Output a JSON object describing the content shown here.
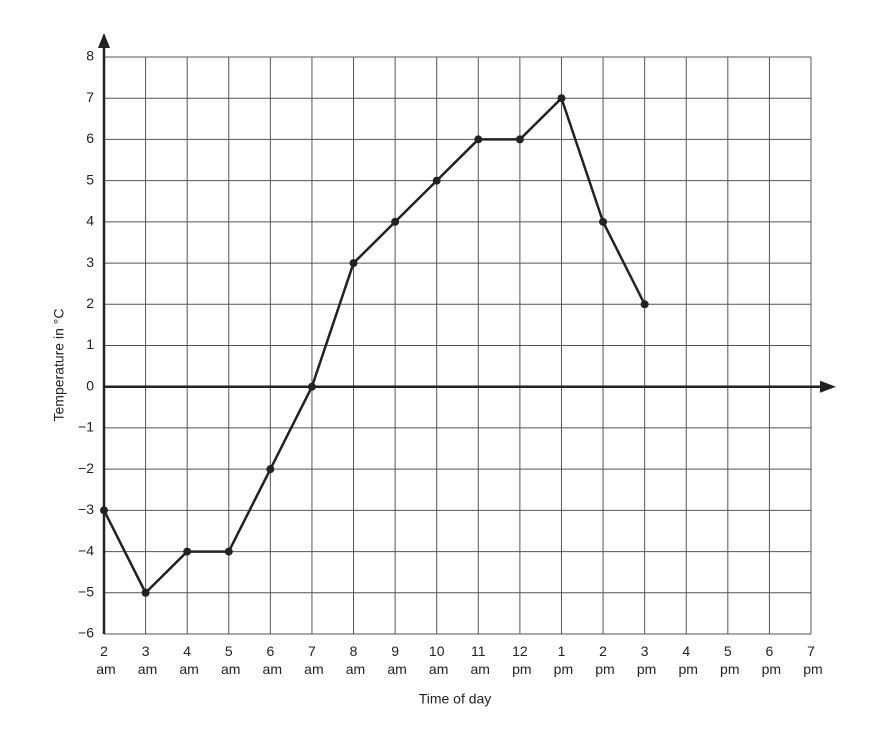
{
  "chart_data": {
    "type": "line",
    "x_label": "Time of day",
    "y_label": "Temperature in °C",
    "categories": [
      "2 am",
      "3 am",
      "4 am",
      "5 am",
      "6 am",
      "7 am",
      "8 am",
      "9 am",
      "10 am",
      "11 am",
      "12 pm",
      "1 pm",
      "2 pm",
      "3 pm",
      "4 pm",
      "5 pm",
      "6 pm",
      "7 pm"
    ],
    "values": [
      -3,
      -5,
      -4,
      -4,
      -2,
      0,
      3,
      4,
      5,
      6,
      6,
      7,
      4,
      2,
      null,
      null,
      null,
      null
    ],
    "color": "#222222",
    "ylim": [
      -6,
      8
    ],
    "yticks": [
      {
        "value": -6,
        "label": "−6"
      },
      {
        "value": -5,
        "label": "−5"
      },
      {
        "value": -4,
        "label": "−4"
      },
      {
        "value": -3,
        "label": "−3"
      },
      {
        "value": -2,
        "label": "−2"
      },
      {
        "value": -1,
        "label": "−1"
      },
      0,
      1,
      2,
      3,
      4,
      5,
      6,
      7,
      8
    ],
    "grid": true
  }
}
